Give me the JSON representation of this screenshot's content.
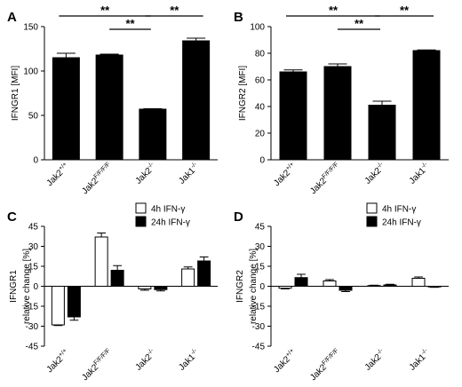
{
  "chart_data": [
    {
      "panel": "A",
      "type": "bar",
      "ylabel": "IFNGR1 [MFI]",
      "ylim": [
        0,
        150
      ],
      "yticks": [
        0,
        50,
        100,
        150
      ],
      "categories": [
        "Jak2+/+",
        "Jak2F/F/F/F",
        "Jak2-/-",
        "Jak1-/-"
      ],
      "category_parts": [
        [
          "Jak2",
          "+/+"
        ],
        [
          "Jak2",
          "F/F/F/F"
        ],
        [
          "Jak2",
          "-/-"
        ],
        [
          "Jak1",
          "-/-"
        ]
      ],
      "series": [
        {
          "values": [
            115,
            118,
            57,
            134
          ],
          "errors": [
            5,
            1,
            0.5,
            3
          ],
          "color": "#000000"
        }
      ],
      "significance": [
        {
          "from": 0,
          "to": 2,
          "label": "**"
        },
        {
          "from": 1,
          "to": 2,
          "label": "**"
        },
        {
          "from": 2,
          "to": 3,
          "label": "**"
        }
      ]
    },
    {
      "panel": "B",
      "type": "bar",
      "ylabel": "IFNGR2 [MFI]",
      "ylim": [
        0,
        100
      ],
      "yticks": [
        0,
        20,
        40,
        60,
        80,
        100
      ],
      "categories": [
        "Jak2+/+",
        "Jak2F/F/F/F",
        "Jak2-/-",
        "Jak1-/-"
      ],
      "category_parts": [
        [
          "Jak2",
          "+/+"
        ],
        [
          "Jak2",
          "F/F/F/F"
        ],
        [
          "Jak2",
          "-/-"
        ],
        [
          "Jak1",
          "-/-"
        ]
      ],
      "series": [
        {
          "values": [
            66,
            70,
            41,
            82
          ],
          "errors": [
            1.5,
            2,
            3,
            0.5
          ],
          "color": "#000000"
        }
      ],
      "significance": [
        {
          "from": 0,
          "to": 2,
          "label": "**"
        },
        {
          "from": 1,
          "to": 2,
          "label": "**"
        },
        {
          "from": 2,
          "to": 3,
          "label": "**"
        }
      ]
    },
    {
      "panel": "C",
      "type": "bar",
      "ylabel": "IFNGR1",
      "ylabel2": "relative change [%]",
      "ylim": [
        -45,
        45
      ],
      "yticks": [
        -45,
        -30,
        -15,
        0,
        15,
        30,
        45
      ],
      "categories": [
        "Jak2+/+",
        "Jak2F/F/F/F",
        "Jak2-/-",
        "Jak1-/-"
      ],
      "category_parts": [
        [
          "Jak2",
          "+/+"
        ],
        [
          "Jak2",
          "F/F/F/F"
        ],
        [
          "Jak2",
          "-/-"
        ],
        [
          "Jak1",
          "-/-"
        ]
      ],
      "legend_position": "top-right",
      "series": [
        {
          "name": "4h IFN-γ",
          "values": [
            -29,
            37,
            -2,
            13
          ],
          "errors": [
            0.5,
            3,
            1,
            1.5
          ],
          "color": "#ffffff"
        },
        {
          "name": "24h IFN-γ",
          "values": [
            -23,
            12,
            -2.5,
            19
          ],
          "errors": [
            2.5,
            3.5,
            1,
            3
          ],
          "color": "#000000"
        }
      ]
    },
    {
      "panel": "D",
      "type": "bar",
      "ylabel": "IFNGR2",
      "ylabel2": "relative change [%]",
      "ylim": [
        -45,
        45
      ],
      "yticks": [
        -45,
        -30,
        -15,
        0,
        15,
        30,
        45
      ],
      "categories": [
        "Jak2+/+",
        "Jak2F/F/F/F",
        "Jak2-/-",
        "Jak1-/-"
      ],
      "category_parts": [
        [
          "Jak2",
          "+/+"
        ],
        [
          "Jak2",
          "F/F/F/F"
        ],
        [
          "Jak2",
          "-/-"
        ],
        [
          "Jak1",
          "-/-"
        ]
      ],
      "legend_position": "top-right",
      "series": [
        {
          "name": "4h IFN-γ",
          "values": [
            -1.5,
            4,
            0.5,
            6
          ],
          "errors": [
            0.5,
            1,
            0.3,
            1
          ],
          "color": "#ffffff"
        },
        {
          "name": "24h IFN-γ",
          "values": [
            6.5,
            -3,
            1,
            -0.5
          ],
          "errors": [
            2.5,
            1,
            0.5,
            0.3
          ],
          "color": "#000000"
        }
      ]
    }
  ]
}
